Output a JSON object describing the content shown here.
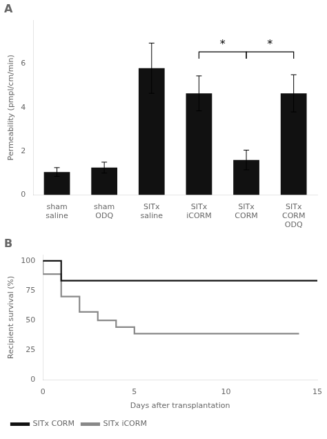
{
  "chart_data": [
    {
      "type": "bar",
      "title": "A",
      "categories": [
        "sham\nsaline",
        "sham\nODQ",
        "SITx\nsaline",
        "SITx\niCORM",
        "SITx\nCORM",
        "SITx\nCORM\nODQ"
      ],
      "values": [
        1.05,
        1.25,
        5.8,
        4.65,
        1.6,
        4.65
      ],
      "errors": [
        0.2,
        0.25,
        1.15,
        0.8,
        0.45,
        0.85
      ],
      "color": "#111111",
      "ylabel": "Permeability (pmpl/cm/min)",
      "ylim": [
        0,
        8.0
      ],
      "yticks": [
        0,
        2,
        4,
        6
      ],
      "grid": false,
      "annotations": [
        {
          "from": "SITx\niCORM",
          "to": "SITx\nCORM",
          "y": 6.55,
          "text": "*"
        },
        {
          "from": "SITx\nCORM",
          "to": "SITx\nCORM\nODQ",
          "y": 6.55,
          "text": "*"
        }
      ]
    },
    {
      "type": "line",
      "title": "B",
      "xlabel": "Days after transplantation",
      "ylabel": "Recipient survival (%)",
      "series": [
        {
          "name": "SITx CORM",
          "color": "#111111",
          "x": [
            0,
            1,
            2,
            15
          ],
          "values": [
            100,
            100,
            83.33,
            83.33
          ]
        },
        {
          "name": "SITx iCORM",
          "color": "#888888",
          "x": [
            0,
            1,
            2,
            3,
            4,
            5,
            9,
            14
          ],
          "values": [
            100,
            88.88,
            70.0,
            57.14,
            50.0,
            44.44,
            38.88,
            38.88
          ]
        }
      ],
      "xlim": [
        0,
        15
      ],
      "xticks": [
        0,
        5,
        10,
        15
      ],
      "ylim": [
        0,
        105
      ],
      "yticks": [
        0,
        25,
        50,
        75,
        100
      ],
      "line_style": "steps",
      "grid": false,
      "legend": "lower left"
    }
  ]
}
